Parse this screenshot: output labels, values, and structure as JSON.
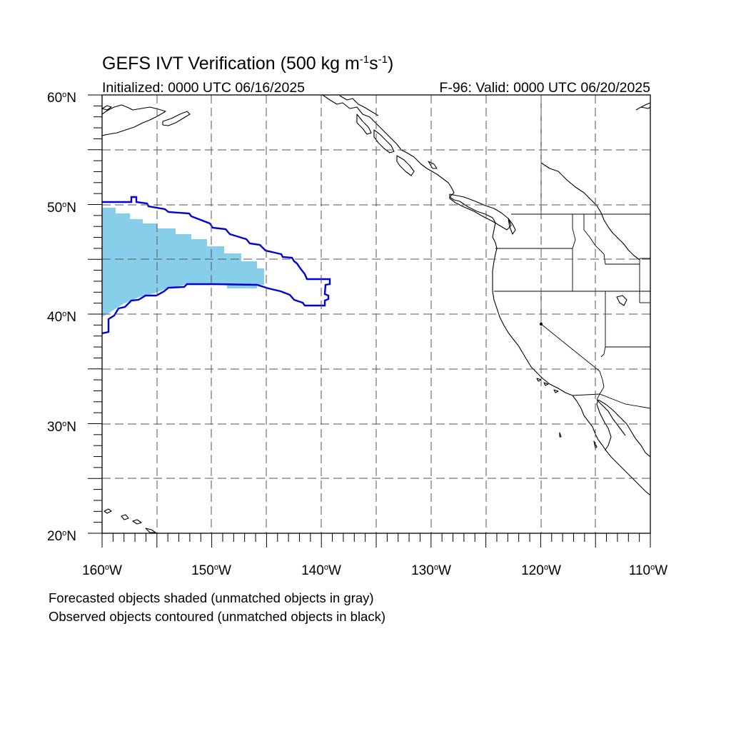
{
  "title": {
    "main": "GEFS IVT Verification (500 kg m",
    "exp1": "-1",
    "mid": "s",
    "exp2": "-1",
    "close": ")"
  },
  "initialized": "Initialized: 0000 UTC 06/16/2025",
  "valid": "F-96: Valid: 0000 UTC 06/20/2025",
  "lat_labels": [
    {
      "deg": "60",
      "hemi": "N"
    },
    {
      "deg": "50",
      "hemi": "N"
    },
    {
      "deg": "40",
      "hemi": "N"
    },
    {
      "deg": "30",
      "hemi": "N"
    },
    {
      "deg": "20",
      "hemi": "N"
    }
  ],
  "lon_labels": [
    {
      "deg": "160",
      "hemi": "W"
    },
    {
      "deg": "150",
      "hemi": "W"
    },
    {
      "deg": "140",
      "hemi": "W"
    },
    {
      "deg": "130",
      "hemi": "W"
    },
    {
      "deg": "120",
      "hemi": "W"
    },
    {
      "deg": "110",
      "hemi": "W"
    }
  ],
  "footnote": {
    "line1": "Forecasted objects shaded (unmatched objects in gray)",
    "line2": "Observed objects contoured (unmatched objects in black)"
  },
  "colors": {
    "forecast_fill": "#87ceeb",
    "observed_contour": "#0000dd",
    "coast": "#000000",
    "grid": "#555555"
  },
  "map_extent": {
    "lon_min": -160,
    "lon_max": -110,
    "lat_min": 20,
    "lat_max": 60,
    "grid_step_deg": 5
  }
}
